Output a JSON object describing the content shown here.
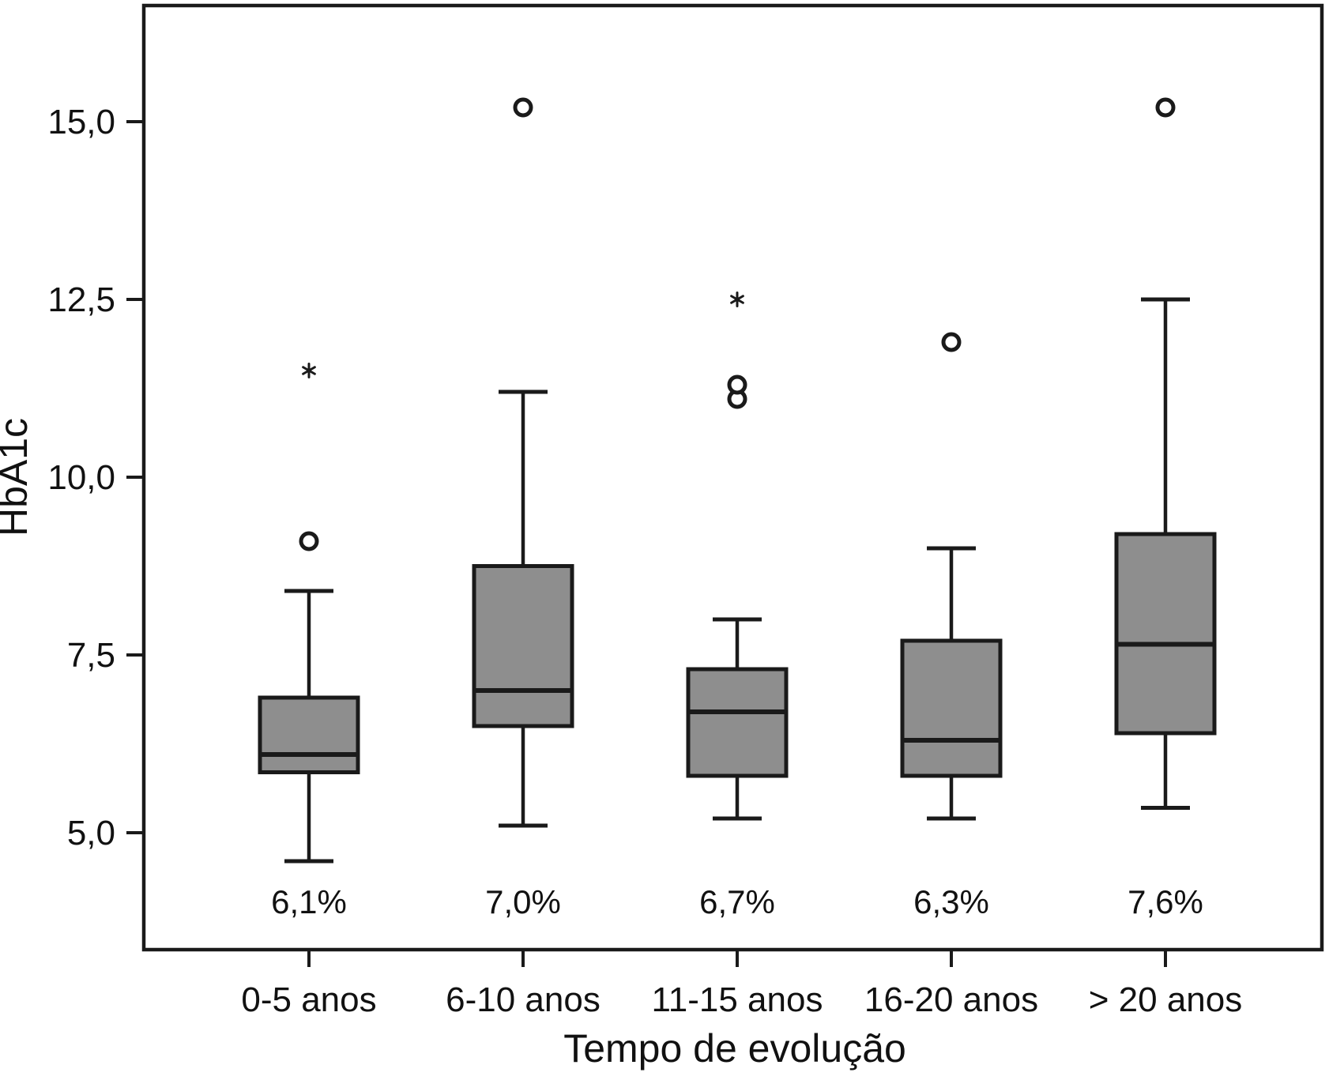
{
  "figure": {
    "background": "#ffffff"
  },
  "chart_data": {
    "type": "boxplot",
    "title": "",
    "xlabel": "Tempo de evolução",
    "ylabel": "HbA1c",
    "ylim": [
      3.3,
      16.6
    ],
    "yticks": [
      5.0,
      7.5,
      10.0,
      12.5,
      15.0
    ],
    "ytick_labels": [
      "5,0",
      "7,5",
      "10,0",
      "12,5",
      "15,0"
    ],
    "categories": [
      "0-5 anos",
      "6-10 anos",
      "11-15 anos",
      "16-20 anos",
      "> 20 anos"
    ],
    "median_labels": [
      "6,1%",
      "7,0%",
      "6,7%",
      "6,3%",
      "7,6%"
    ],
    "series": [
      {
        "category": "0-5 anos",
        "whisker_low": 4.6,
        "q1": 5.85,
        "median": 6.1,
        "q3": 6.9,
        "whisker_high": 8.4,
        "outliers": [
          9.1
        ],
        "extremes": [
          11.5
        ],
        "median_label": "6,1%"
      },
      {
        "category": "6-10 anos",
        "whisker_low": 5.1,
        "q1": 6.5,
        "median": 7.0,
        "q3": 8.75,
        "whisker_high": 11.2,
        "outliers": [
          15.2
        ],
        "extremes": [],
        "median_label": "7,0%"
      },
      {
        "category": "11-15 anos",
        "whisker_low": 5.2,
        "q1": 5.8,
        "median": 6.7,
        "q3": 7.3,
        "whisker_high": 8.0,
        "outliers": [
          11.1,
          11.3
        ],
        "extremes": [
          12.5
        ],
        "median_label": "6,7%"
      },
      {
        "category": "16-20 anos",
        "whisker_low": 5.2,
        "q1": 5.8,
        "median": 6.3,
        "q3": 7.7,
        "whisker_high": 9.0,
        "outliers": [
          11.9
        ],
        "extremes": [],
        "median_label": "6,3%"
      },
      {
        "category": "> 20 anos",
        "whisker_low": 5.35,
        "q1": 6.4,
        "median": 7.65,
        "q3": 9.2,
        "whisker_high": 12.5,
        "outliers": [
          15.2
        ],
        "extremes": [],
        "median_label": "7,6%"
      }
    ],
    "legend": null,
    "grid": "off",
    "outlier_marker": "open-circle",
    "extreme_marker": "asterisk",
    "colors": {
      "box_fill": "#8e8e8e",
      "line": "#1a1a1a",
      "text": "#111111"
    }
  }
}
